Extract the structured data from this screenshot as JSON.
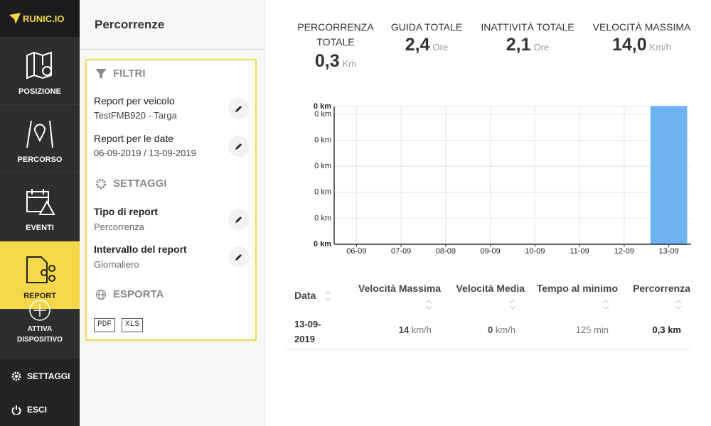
{
  "sidebar": {
    "logo": "RUNIC.IO",
    "nav": [
      "POSIZIONE",
      "PERCORSO",
      "EVENTI",
      "REPORT"
    ],
    "activate": "ATTIVA DISPOSITIVO",
    "settings": "SETTAGGI",
    "logout": "ESCI"
  },
  "panel": {
    "title": "Percorrenze",
    "filters": {
      "title": "FILTRI",
      "vehicle": {
        "label": "Report per veicolo",
        "value": "TestFMB920 - Targa"
      },
      "dates": {
        "label": "Report per le date",
        "value": "06-09-2019 / 13-09-2019"
      }
    },
    "settings": {
      "title": "SETTAGGI",
      "type": {
        "label": "Tipo di report",
        "value": "Percorrenza"
      },
      "interval": {
        "label": "Intervallo del report",
        "value": "Giornaliero"
      }
    },
    "export": {
      "title": "ESPORTA",
      "formats": [
        "PDF",
        "XLS"
      ]
    }
  },
  "stats": [
    {
      "label": "PERCORRENZA TOTALE",
      "value": "0,3",
      "unit": "Km"
    },
    {
      "label": "GUIDA TOTALE",
      "value": "2,4",
      "unit": "Ore"
    },
    {
      "label": "INATTIVITÀ TOTALE",
      "value": "2,1",
      "unit": "Ore"
    },
    {
      "label": "VELOCITÀ MASSIMA",
      "value": "14,0",
      "unit": "Km/h"
    }
  ],
  "chart_data": {
    "type": "bar",
    "categories": [
      "06-09",
      "07-09",
      "08-09",
      "09-09",
      "10-09",
      "11-09",
      "12-09",
      "13-09"
    ],
    "values": [
      0,
      0,
      0,
      0,
      0,
      0,
      0,
      0.318
    ],
    "color": "#6db3f2",
    "ylim": [
      0,
      0.318
    ],
    "yticks": [
      {
        "value": 0,
        "label": "0 km"
      },
      {
        "value": 0.06,
        "label": "0 km"
      },
      {
        "value": 0.12,
        "label": "0 km"
      },
      {
        "value": 0.18,
        "label": "0 km"
      },
      {
        "value": 0.24,
        "label": "0 km"
      },
      {
        "value": 0.3,
        "label": "0 km"
      },
      {
        "value": 0.318,
        "label": "0 km"
      }
    ],
    "grid": true
  },
  "table": {
    "headers": [
      "Data",
      "Velocità Massima",
      "Velocità Media",
      "Tempo al minimo",
      "Percorrenza"
    ],
    "rows": [
      [
        "13-09-2019",
        {
          "value": "14",
          "unit": "km/h"
        },
        {
          "value": "0",
          "unit": "km/h"
        },
        "125 min",
        "0,3 km"
      ]
    ]
  }
}
